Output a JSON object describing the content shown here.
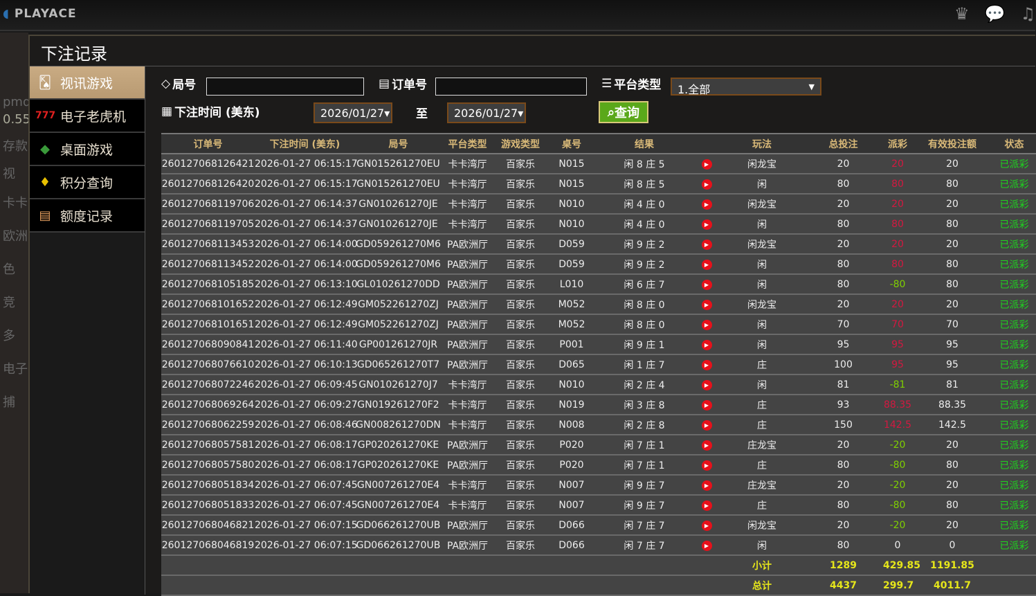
{
  "header": {
    "logo": "PLAYACE",
    "icons": [
      "vip-crown-icon",
      "chat-icon",
      "music-icon"
    ]
  },
  "background": {
    "labels": [
      "pmd",
      "0.55",
      "存款",
      "视",
      "卡卡",
      "欧洲",
      "色",
      "竞",
      "多",
      "电子",
      "捕"
    ]
  },
  "panel": {
    "title": "下注记录"
  },
  "sidebar": {
    "items": [
      {
        "label": "视讯游戏",
        "icon": "playing-cards-icon",
        "active": true
      },
      {
        "label": "电子老虎机",
        "icon": "slot-777-icon"
      },
      {
        "label": "桌面游戏",
        "icon": "chips-icon"
      },
      {
        "label": "积分查询",
        "icon": "diamond-icon"
      },
      {
        "label": "额度记录",
        "icon": "document-icon"
      }
    ]
  },
  "filters": {
    "round_label": "局号",
    "round_value": "",
    "order_label": "订单号",
    "order_value": "",
    "platform_label": "平台类型",
    "platform_value": "1.全部",
    "time_label": "下注时间 (美东)",
    "date_from": "2026/01/27",
    "to_label": "至",
    "date_to": "2026/01/27",
    "query_label": "查询"
  },
  "table": {
    "headers": [
      "订单号",
      "下注时间 (美东)",
      "局号",
      "平台类型",
      "游戏类型",
      "桌号",
      "结果",
      "",
      "玩法",
      "总投注",
      "派彩",
      "有效投注额",
      "状态"
    ],
    "rows": [
      [
        "260127068126421",
        "2026-01-27 06:15:17",
        "GN015261270EU",
        "卡卡湾厅",
        "百家乐",
        "N015",
        "闲 8 庄 5",
        "闲龙宝",
        "20",
        "20",
        "20",
        "已派彩"
      ],
      [
        "260127068126420",
        "2026-01-27 06:15:17",
        "GN015261270EU",
        "卡卡湾厅",
        "百家乐",
        "N015",
        "闲 8 庄 5",
        "闲",
        "80",
        "80",
        "80",
        "已派彩"
      ],
      [
        "260127068119706",
        "2026-01-27 06:14:37",
        "GN010261270JE",
        "卡卡湾厅",
        "百家乐",
        "N010",
        "闲 4 庄 0",
        "闲龙宝",
        "20",
        "20",
        "20",
        "已派彩"
      ],
      [
        "260127068119705",
        "2026-01-27 06:14:37",
        "GN010261270JE",
        "卡卡湾厅",
        "百家乐",
        "N010",
        "闲 4 庄 0",
        "闲",
        "80",
        "80",
        "80",
        "已派彩"
      ],
      [
        "260127068113453",
        "2026-01-27 06:14:00",
        "GD059261270M6",
        "PA欧洲厅",
        "百家乐",
        "D059",
        "闲 9 庄 2",
        "闲龙宝",
        "20",
        "20",
        "20",
        "已派彩"
      ],
      [
        "260127068113452",
        "2026-01-27 06:14:00",
        "GD059261270M6",
        "PA欧洲厅",
        "百家乐",
        "D059",
        "闲 9 庄 2",
        "闲",
        "80",
        "80",
        "80",
        "已派彩"
      ],
      [
        "260127068105185",
        "2026-01-27 06:13:10",
        "GL010261270DD",
        "PA欧洲厅",
        "百家乐",
        "L010",
        "闲 6 庄 7",
        "闲",
        "80",
        "-80",
        "80",
        "已派彩"
      ],
      [
        "260127068101652",
        "2026-01-27 06:12:49",
        "GM052261270ZJ",
        "PA欧洲厅",
        "百家乐",
        "M052",
        "闲 8 庄 0",
        "闲龙宝",
        "20",
        "20",
        "20",
        "已派彩"
      ],
      [
        "260127068101651",
        "2026-01-27 06:12:49",
        "GM052261270ZJ",
        "PA欧洲厅",
        "百家乐",
        "M052",
        "闲 8 庄 0",
        "闲",
        "70",
        "70",
        "70",
        "已派彩"
      ],
      [
        "260127068090841",
        "2026-01-27 06:11:40",
        "GP001261270JR",
        "PA欧洲厅",
        "百家乐",
        "P001",
        "闲 9 庄 1",
        "闲",
        "95",
        "95",
        "95",
        "已派彩"
      ],
      [
        "260127068076610",
        "2026-01-27 06:10:13",
        "GD065261270T7",
        "PA欧洲厅",
        "百家乐",
        "D065",
        "闲 1 庄 7",
        "庄",
        "100",
        "95",
        "95",
        "已派彩"
      ],
      [
        "260127068072246",
        "2026-01-27 06:09:45",
        "GN010261270J7",
        "卡卡湾厅",
        "百家乐",
        "N010",
        "闲 2 庄 4",
        "闲",
        "81",
        "-81",
        "81",
        "已派彩"
      ],
      [
        "260127068069264",
        "2026-01-27 06:09:27",
        "GN019261270F2",
        "卡卡湾厅",
        "百家乐",
        "N019",
        "闲 3 庄 8",
        "庄",
        "93",
        "88.35",
        "88.35",
        "已派彩"
      ],
      [
        "260127068062259",
        "2026-01-27 06:08:46",
        "GN008261270DN",
        "卡卡湾厅",
        "百家乐",
        "N008",
        "闲 2 庄 8",
        "庄",
        "150",
        "142.5",
        "142.5",
        "已派彩"
      ],
      [
        "260127068057581",
        "2026-01-27 06:08:17",
        "GP020261270KE",
        "PA欧洲厅",
        "百家乐",
        "P020",
        "闲 7 庄 1",
        "庄龙宝",
        "20",
        "-20",
        "20",
        "已派彩"
      ],
      [
        "260127068057580",
        "2026-01-27 06:08:17",
        "GP020261270KE",
        "PA欧洲厅",
        "百家乐",
        "P020",
        "闲 7 庄 1",
        "庄",
        "80",
        "-80",
        "80",
        "已派彩"
      ],
      [
        "260127068051834",
        "2026-01-27 06:07:45",
        "GN007261270E4",
        "卡卡湾厅",
        "百家乐",
        "N007",
        "闲 9 庄 7",
        "庄龙宝",
        "20",
        "-20",
        "20",
        "已派彩"
      ],
      [
        "260127068051833",
        "2026-01-27 06:07:45",
        "GN007261270E4",
        "卡卡湾厅",
        "百家乐",
        "N007",
        "闲 9 庄 7",
        "庄",
        "80",
        "-80",
        "80",
        "已派彩"
      ],
      [
        "260127068046821",
        "2026-01-27 06:07:15",
        "GD066261270UB",
        "PA欧洲厅",
        "百家乐",
        "D066",
        "闲 7 庄 7",
        "闲龙宝",
        "20",
        "-20",
        "20",
        "已派彩"
      ],
      [
        "260127068046819",
        "2026-01-27 06:07:15",
        "GD066261270UB",
        "PA欧洲厅",
        "百家乐",
        "D066",
        "闲 7 庄 7",
        "闲",
        "80",
        "0",
        "0",
        "已派彩"
      ]
    ],
    "subtotal": {
      "label": "小计",
      "total_bet": "1289",
      "payout": "429.85",
      "valid_bet": "1191.85"
    },
    "grand_total": {
      "label": "总计",
      "total_bet": "4437",
      "payout": "299.7",
      "valid_bet": "4011.7"
    },
    "colors": {
      "payout_positive": "#d41840",
      "payout_negative": "#7fd000",
      "status": "#1ed41e",
      "totals": "#e6e61a",
      "header_text": "#d9b978"
    }
  }
}
